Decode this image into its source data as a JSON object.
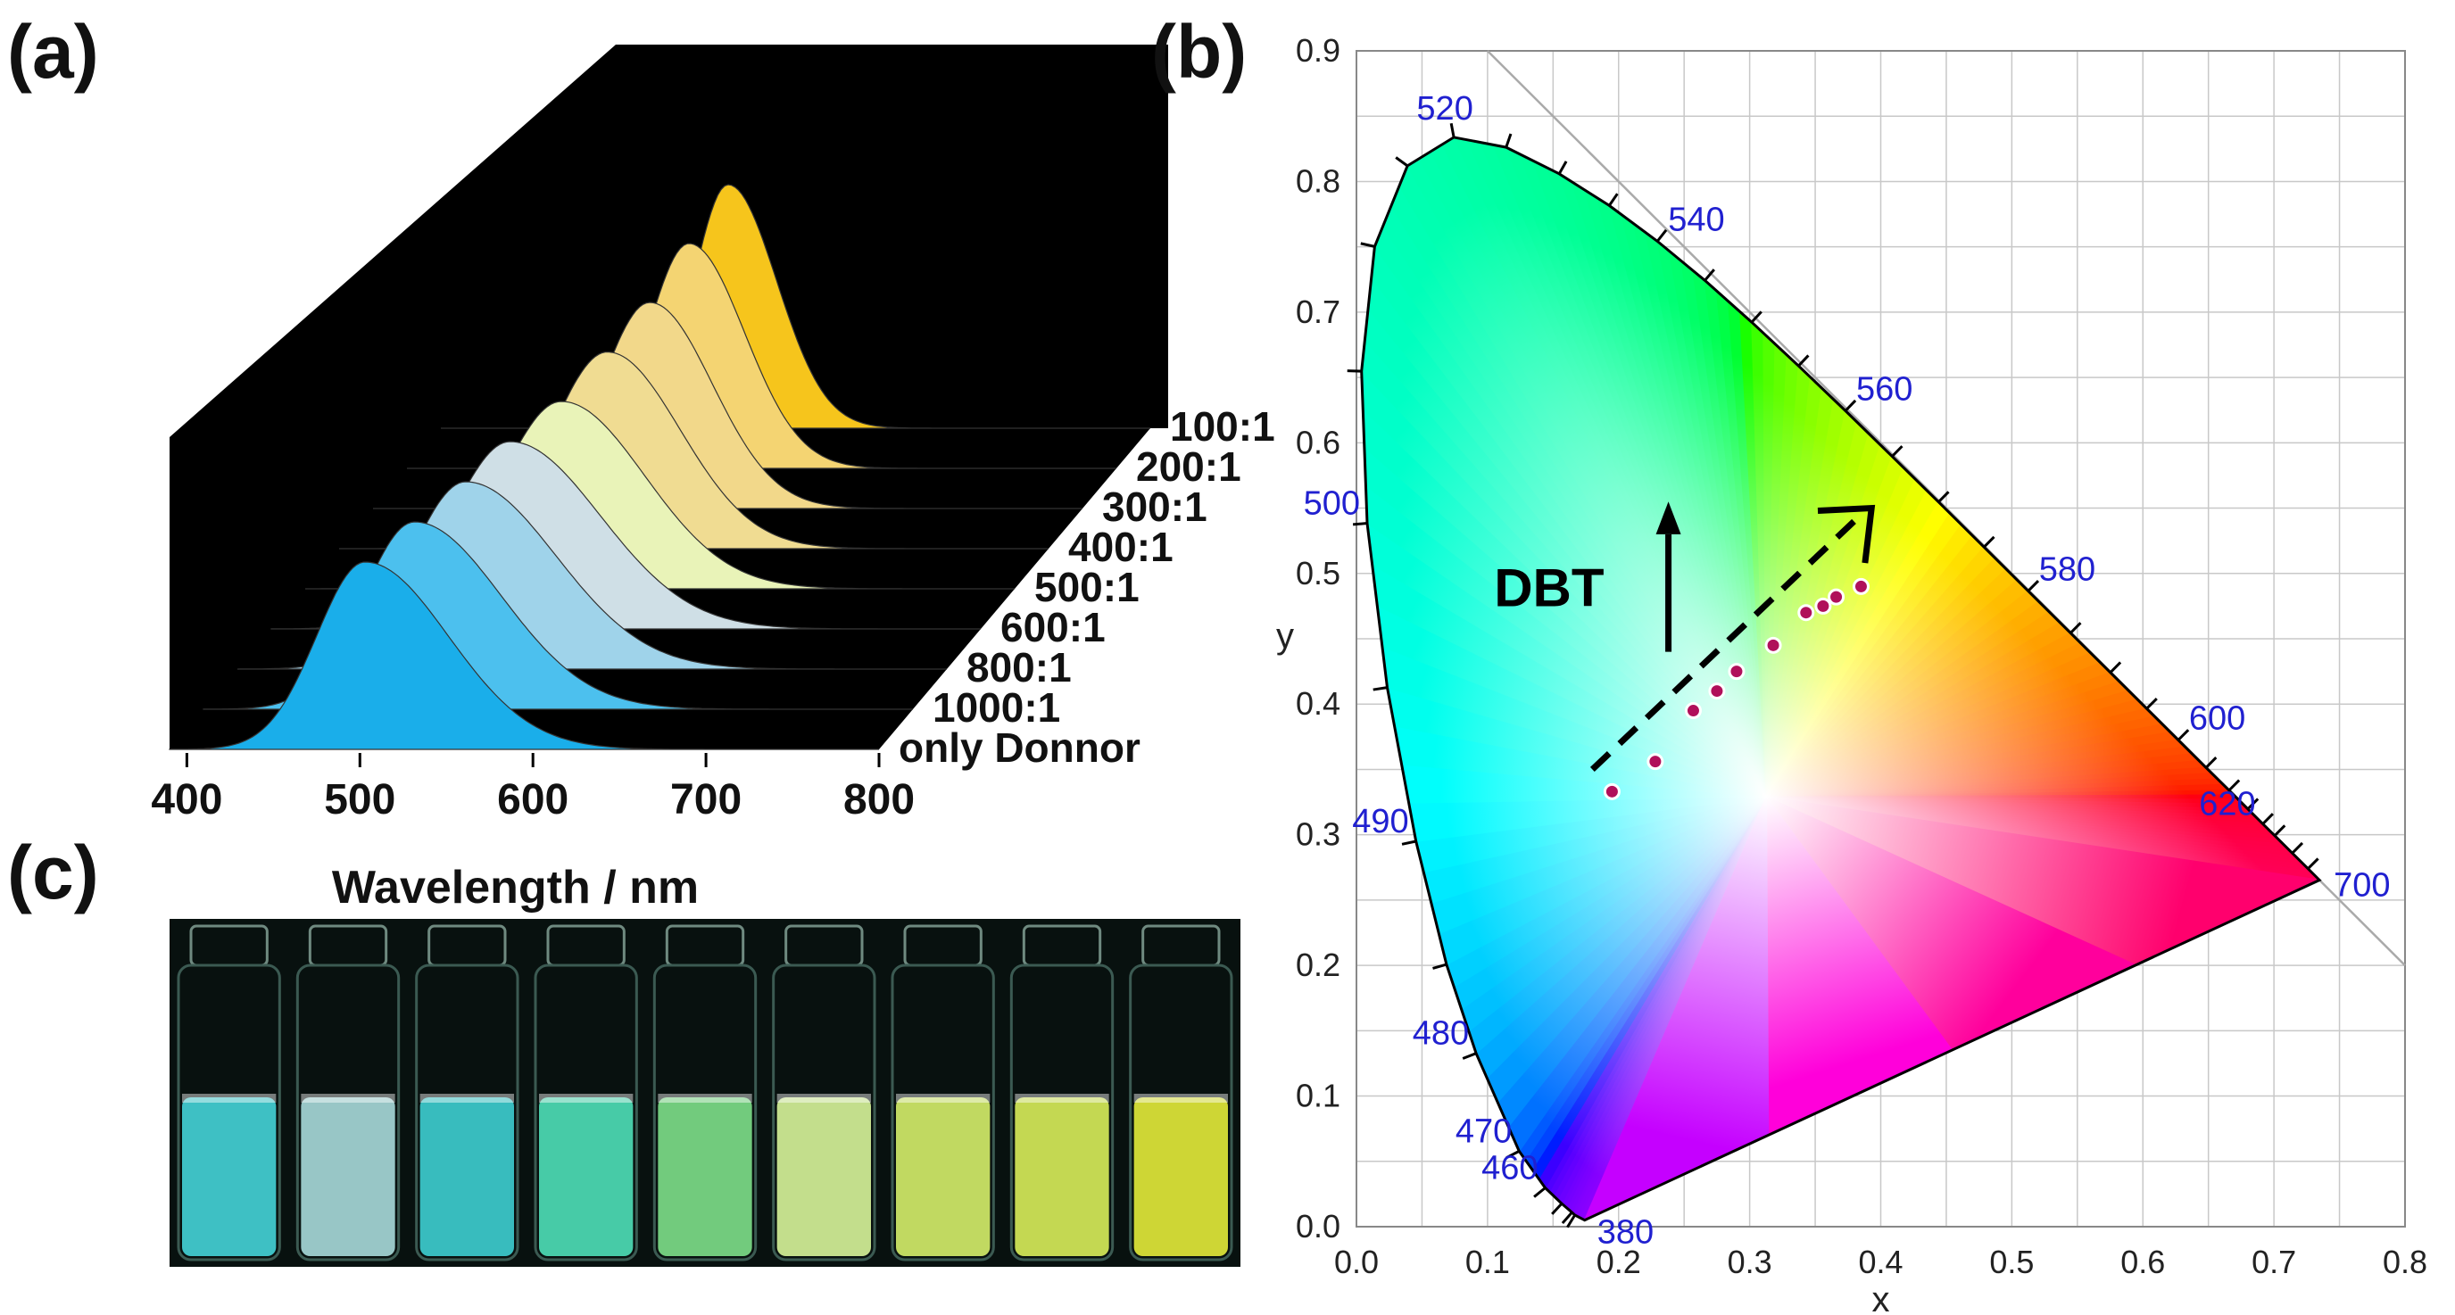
{
  "panel_labels": {
    "a": "(a)",
    "b": "(b)",
    "c": "(c)"
  },
  "chart_data": [
    {
      "type": "area",
      "panel": "(a)",
      "xlabel": "Wavelength / nm",
      "xticks": [
        "400",
        "500",
        "600",
        "700",
        "800"
      ],
      "xlim": [
        390,
        800
      ],
      "colors": {
        "background": "#000000"
      },
      "series": [
        {
          "name": "only Donnor",
          "peak": 503,
          "sigma_left": 28,
          "sigma_right": 48,
          "rel_height": 1.0,
          "color": "#1aaeea"
        },
        {
          "name": "1000:1",
          "peak": 512,
          "sigma_left": 30,
          "sigma_right": 50,
          "rel_height": 1.0,
          "color": "#4cc0ee"
        },
        {
          "name": "800:1",
          "peak": 522,
          "sigma_left": 32,
          "sigma_right": 52,
          "rel_height": 1.0,
          "color": "#9fd3ea"
        },
        {
          "name": "600:1",
          "peak": 528,
          "sigma_left": 34,
          "sigma_right": 52,
          "rel_height": 1.0,
          "color": "#cfdfe6"
        },
        {
          "name": "500:1",
          "peak": 538,
          "sigma_left": 34,
          "sigma_right": 48,
          "rel_height": 1.0,
          "color": "#e9f3b8"
        },
        {
          "name": "400:1",
          "peak": 545,
          "sigma_left": 32,
          "sigma_right": 42,
          "rel_height": 1.05,
          "color": "#f0dc92"
        },
        {
          "name": "300:1",
          "peak": 550,
          "sigma_left": 28,
          "sigma_right": 36,
          "rel_height": 1.1,
          "color": "#f2d88a"
        },
        {
          "name": "200:1",
          "peak": 553,
          "sigma_left": 24,
          "sigma_right": 32,
          "rel_height": 1.2,
          "color": "#f4d472"
        },
        {
          "name": "100:1",
          "peak": 556,
          "sigma_left": 20,
          "sigma_right": 28,
          "rel_height": 1.3,
          "color": "#f6c51c"
        }
      ]
    },
    {
      "type": "scatter",
      "panel": "(b)",
      "xlabel": "x",
      "ylabel": "y",
      "xlim": [
        0,
        0.8
      ],
      "ylim": [
        0,
        0.9
      ],
      "xticks": [
        "0.0",
        "0.1",
        "0.2",
        "0.3",
        "0.4",
        "0.5",
        "0.6",
        "0.7",
        "0.8"
      ],
      "yticks": [
        "0.0",
        "0.1",
        "0.2",
        "0.3",
        "0.4",
        "0.5",
        "0.6",
        "0.7",
        "0.8",
        "0.9"
      ],
      "grid": true,
      "wavelength_labels": [
        {
          "text": "380",
          "x": 0.1741,
          "y": 0.005
        },
        {
          "text": "460",
          "x": 0.144,
          "y": 0.0297
        },
        {
          "text": "470",
          "x": 0.1241,
          "y": 0.0578
        },
        {
          "text": "480",
          "x": 0.0913,
          "y": 0.1327
        },
        {
          "text": "490",
          "x": 0.0454,
          "y": 0.295
        },
        {
          "text": "500",
          "x": 0.0082,
          "y": 0.5384
        },
        {
          "text": "520",
          "x": 0.0743,
          "y": 0.8338
        },
        {
          "text": "540",
          "x": 0.2296,
          "y": 0.7543
        },
        {
          "text": "560",
          "x": 0.3731,
          "y": 0.6245
        },
        {
          "text": "580",
          "x": 0.5125,
          "y": 0.4866
        },
        {
          "text": "600",
          "x": 0.627,
          "y": 0.3725
        },
        {
          "text": "620",
          "x": 0.6915,
          "y": 0.3083
        },
        {
          "text": "700",
          "x": 0.7347,
          "y": 0.2653
        }
      ],
      "points_x": [
        0.195,
        0.228,
        0.257,
        0.275,
        0.29,
        0.318,
        0.343,
        0.356,
        0.366,
        0.385
      ],
      "points_y": [
        0.333,
        0.356,
        0.395,
        0.41,
        0.425,
        0.445,
        0.47,
        0.475,
        0.482,
        0.49
      ],
      "annotation": "DBT",
      "colors": {
        "point": "#b0105a",
        "boundary": "#000000",
        "wavelength_label": "#2020d0"
      }
    }
  ]
}
